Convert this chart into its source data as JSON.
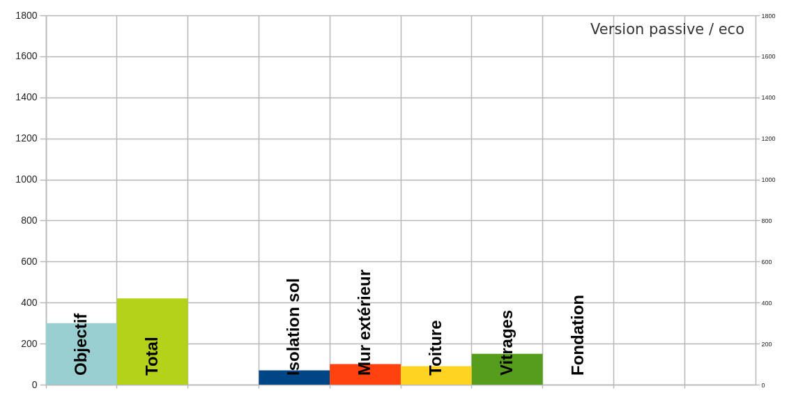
{
  "chart_data": {
    "type": "bar",
    "title": "Version passive / eco",
    "categories": [
      "Objectif",
      "Total",
      null,
      "Isolation sol",
      "Mur extérieur",
      "Toiture",
      "Vitrages",
      "Fondation",
      null,
      null
    ],
    "values": [
      300,
      420,
      null,
      70,
      100,
      90,
      150,
      0,
      null,
      null
    ],
    "colors": [
      "#99cfd0",
      "#b4d21a",
      null,
      "#004586",
      "#ff420e",
      "#ffd320",
      "#579d1c",
      null,
      null,
      null
    ],
    "ylim": [
      0,
      1800
    ],
    "yticks": [
      0,
      200,
      400,
      600,
      800,
      1000,
      1200,
      1400,
      1600,
      1800
    ],
    "y2lim": [
      0,
      1800
    ],
    "y2ticks": [
      0,
      200,
      400,
      600,
      800,
      1000,
      1200,
      1400,
      1600,
      1800
    ],
    "grid": true
  }
}
